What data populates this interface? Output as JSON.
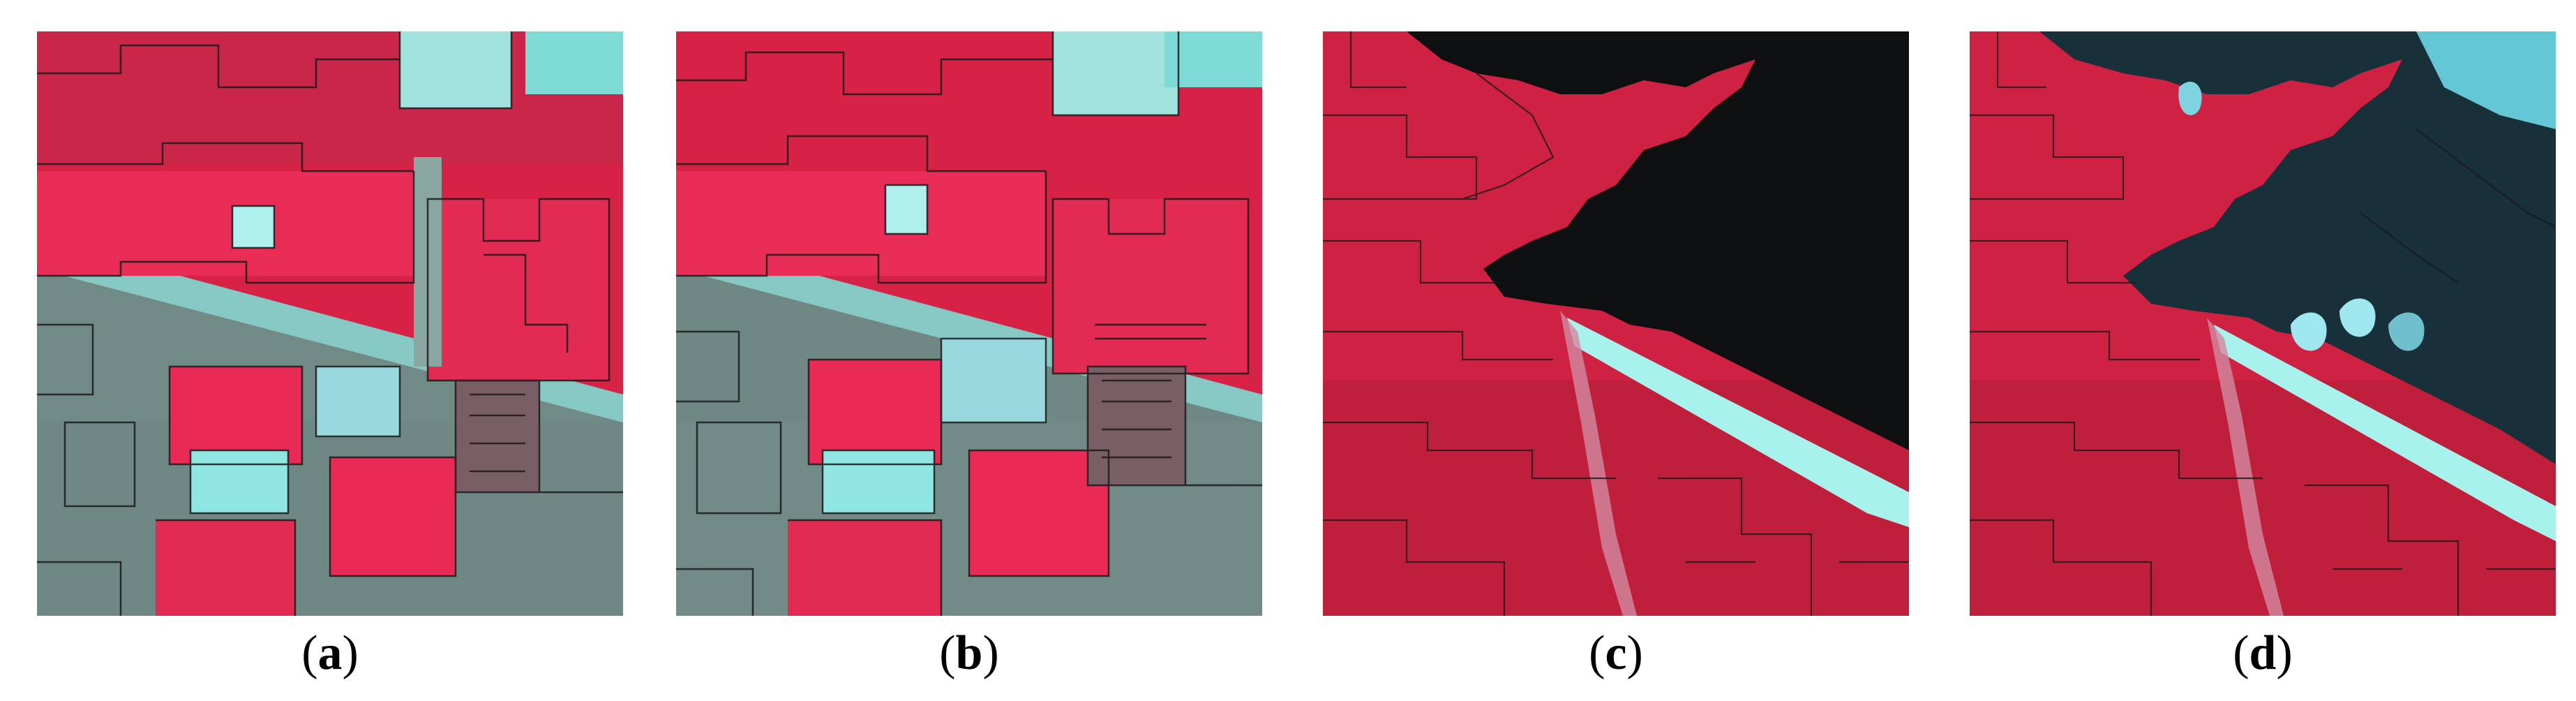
{
  "figure": {
    "panels": [
      {
        "id": "a",
        "label": "a",
        "scene": "agricultural-fields-segmentation"
      },
      {
        "id": "b",
        "label": "b",
        "scene": "agricultural-fields-segmentation"
      },
      {
        "id": "c",
        "label": "c",
        "scene": "forest-water-segmentation"
      },
      {
        "id": "d",
        "label": "d",
        "scene": "forest-water-segmentation"
      }
    ],
    "captions": {
      "a": {
        "open": "(",
        "label": "a",
        "close": ")"
      },
      "b": {
        "open": "(",
        "label": "b",
        "close": ")"
      },
      "c": {
        "open": "(",
        "label": "c",
        "close": ")"
      },
      "d": {
        "open": "(",
        "label": "d",
        "close": ")"
      }
    },
    "colors": {
      "vegetation": "#e8254a",
      "vegetation_dark": "#c41a3a",
      "urban_cyan": "#7de0e0",
      "urban_gray": "#6f8a86",
      "water_dark": "#0d0f10",
      "water_teal": "#1d3a44",
      "river": "#a8f2ee",
      "boundary": "#1a1a1a"
    }
  }
}
